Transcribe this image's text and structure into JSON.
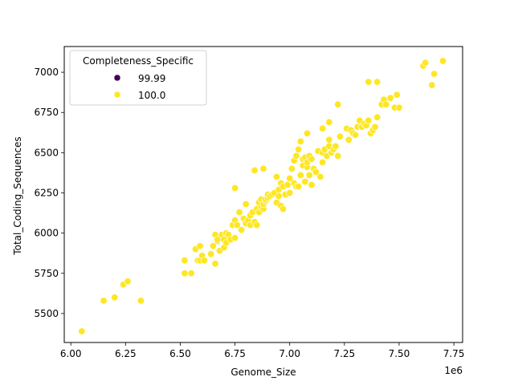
{
  "chart_data": {
    "type": "scatter",
    "xlabel": "Genome_Size",
    "ylabel": "Total_Coding_Sequences",
    "x_offset_label": "1e6",
    "xlim": [
      5.97,
      7.79
    ],
    "ylim": [
      5320,
      7160
    ],
    "x_ticks": [
      6.0,
      6.25,
      6.5,
      6.75,
      7.0,
      7.25,
      7.5,
      7.75
    ],
    "x_tick_labels": [
      "6.00",
      "6.25",
      "6.50",
      "6.75",
      "7.00",
      "7.25",
      "7.50",
      "7.75"
    ],
    "y_ticks": [
      5500,
      5750,
      6000,
      6250,
      6500,
      6750,
      7000
    ],
    "y_tick_labels": [
      "5500",
      "5750",
      "6000",
      "6250",
      "6500",
      "6750",
      "7000"
    ],
    "grid": false,
    "legend": {
      "title": "Completeness_Specific",
      "placement": "top-left",
      "entries": [
        {
          "label": "99.99",
          "color": "#440154"
        },
        {
          "label": "100.0",
          "color": "#fde725"
        }
      ]
    },
    "series": [
      {
        "label": "100.0",
        "color": "#fde725",
        "x": [
          6.05,
          6.15,
          6.2,
          6.24,
          6.26,
          6.32,
          6.52,
          6.52,
          6.55,
          6.57,
          6.58,
          6.59,
          6.59,
          6.6,
          6.61,
          6.64,
          6.65,
          6.66,
          6.66,
          6.67,
          6.67,
          6.68,
          6.69,
          6.7,
          6.7,
          6.71,
          6.71,
          6.72,
          6.73,
          6.74,
          6.75,
          6.75,
          6.76,
          6.77,
          6.78,
          6.79,
          6.8,
          6.8,
          6.81,
          6.82,
          6.82,
          6.83,
          6.84,
          6.85,
          6.85,
          6.86,
          6.86,
          6.87,
          6.87,
          6.88,
          6.88,
          6.89,
          6.89,
          6.9,
          6.9,
          6.91,
          6.92,
          6.93,
          6.94,
          6.94,
          6.95,
          6.95,
          6.96,
          6.96,
          6.97,
          6.97,
          6.98,
          6.99,
          7.0,
          7.0,
          7.01,
          7.02,
          7.02,
          7.03,
          7.03,
          7.04,
          7.04,
          7.05,
          7.05,
          7.06,
          7.06,
          7.07,
          7.07,
          7.08,
          7.08,
          7.09,
          7.09,
          7.1,
          7.1,
          7.11,
          7.12,
          7.13,
          7.14,
          7.15,
          7.15,
          7.16,
          7.17,
          7.18,
          7.18,
          7.19,
          7.2,
          7.21,
          7.22,
          7.23,
          7.26,
          7.27,
          7.28,
          7.29,
          7.3,
          7.31,
          7.32,
          7.33,
          7.34,
          7.35,
          7.36,
          7.37,
          7.38,
          7.39,
          7.4,
          7.42,
          7.43,
          7.44,
          7.46,
          7.48,
          7.49,
          7.5,
          7.61,
          7.62,
          7.65,
          7.66,
          7.7,
          6.84,
          6.88,
          6.75,
          7.08,
          7.22,
          7.36,
          7.4,
          7.18,
          7.15
        ],
        "y": [
          5390,
          5580,
          5600,
          5680,
          5700,
          5580,
          5750,
          5830,
          5750,
          5900,
          5830,
          5920,
          5830,
          5860,
          5830,
          5870,
          5920,
          5810,
          5990,
          5950,
          5960,
          5890,
          5990,
          5960,
          5910,
          6000,
          5940,
          5990,
          5960,
          6050,
          5970,
          6080,
          6050,
          6130,
          6020,
          6090,
          6060,
          6180,
          6080,
          6110,
          6050,
          6130,
          6070,
          6150,
          6050,
          6190,
          6130,
          6210,
          6160,
          6150,
          6180,
          6200,
          6210,
          6220,
          6240,
          6230,
          6240,
          6250,
          6350,
          6190,
          6230,
          6270,
          6170,
          6310,
          6290,
          6150,
          6240,
          6300,
          6340,
          6250,
          6400,
          6310,
          6450,
          6290,
          6480,
          6290,
          6520,
          6360,
          6570,
          6420,
          6460,
          6320,
          6470,
          6410,
          6440,
          6480,
          6360,
          6300,
          6460,
          6400,
          6380,
          6510,
          6350,
          6500,
          6440,
          6520,
          6480,
          6540,
          6580,
          6500,
          6520,
          6540,
          6480,
          6600,
          6650,
          6580,
          6640,
          6620,
          6610,
          6660,
          6700,
          6660,
          6680,
          6670,
          6700,
          6620,
          6640,
          6660,
          6720,
          6800,
          6830,
          6800,
          6840,
          6780,
          6860,
          6780,
          7040,
          7060,
          6920,
          6990,
          7070,
          6390,
          6400,
          6280,
          6620,
          6800,
          6940,
          6940,
          6690,
          6650
        ]
      }
    ]
  }
}
